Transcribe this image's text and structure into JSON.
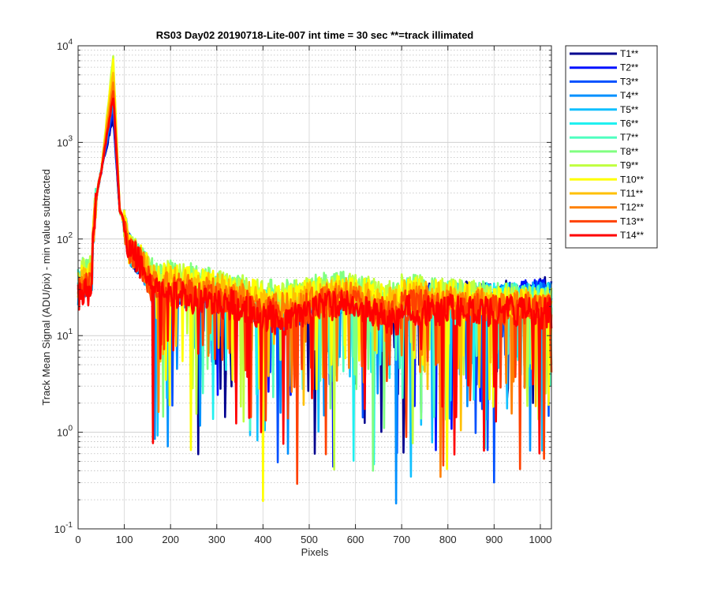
{
  "chart_data": {
    "type": "line",
    "title": "RS03 Day02 20190718-Lite-007 int time = 30 sec   **=track illimated",
    "xlabel": "Pixels",
    "ylabel": "Track Mean Signal (ADU/pix) - min value subtracted",
    "xlim": [
      0,
      1024
    ],
    "ylim": [
      0.1,
      10000
    ],
    "yscale": "log",
    "grid": true,
    "legend_position": "outside-right",
    "x_ticks": [
      0,
      100,
      200,
      300,
      400,
      500,
      600,
      700,
      800,
      900,
      1000
    ],
    "x_tick_labels": [
      "0",
      "100",
      "200",
      "300",
      "400",
      "500",
      "600",
      "700",
      "800",
      "900",
      "1000"
    ],
    "y_tick_labels": [
      {
        "base": "10",
        "exp": "-1"
      },
      {
        "base": "10",
        "exp": "0"
      },
      {
        "base": "10",
        "exp": "1"
      },
      {
        "base": "10",
        "exp": "2"
      },
      {
        "base": "10",
        "exp": "3"
      },
      {
        "base": "10",
        "exp": "4"
      }
    ],
    "series": [
      {
        "name": "T1**",
        "color": "#00008f",
        "peak": 1800,
        "tail": 26,
        "floor": 28
      },
      {
        "name": "T2**",
        "color": "#0010ff",
        "peak": 2100,
        "tail": 25,
        "floor": 27
      },
      {
        "name": "T3**",
        "color": "#0050ff",
        "peak": 2400,
        "tail": 24,
        "floor": 26
      },
      {
        "name": "T4**",
        "color": "#0090ff",
        "peak": 2800,
        "tail": 24,
        "floor": 25
      },
      {
        "name": "T5**",
        "color": "#10c0ff",
        "peak": 3300,
        "tail": 25,
        "floor": 24
      },
      {
        "name": "T6**",
        "color": "#20f0f0",
        "peak": 4000,
        "tail": 27,
        "floor": 24
      },
      {
        "name": "T7**",
        "color": "#50ffc0",
        "peak": 5000,
        "tail": 30,
        "floor": 23
      },
      {
        "name": "T8**",
        "color": "#80ff80",
        "peak": 6500,
        "tail": 34,
        "floor": 22
      },
      {
        "name": "T9**",
        "color": "#c0ff40",
        "peak": 7800,
        "tail": 33,
        "floor": 22
      },
      {
        "name": "T10**",
        "color": "#ffff00",
        "peak": 7000,
        "tail": 31,
        "floor": 21
      },
      {
        "name": "T11**",
        "color": "#ffc000",
        "peak": 5500,
        "tail": 29,
        "floor": 20
      },
      {
        "name": "T12**",
        "color": "#ff8000",
        "peak": 4200,
        "tail": 26,
        "floor": 19
      },
      {
        "name": "T13**",
        "color": "#ff4000",
        "peak": 3300,
        "tail": 23,
        "floor": 18
      },
      {
        "name": "T14**",
        "color": "#ff0000",
        "peak": 3000,
        "tail": 21,
        "floor": 17
      }
    ]
  }
}
